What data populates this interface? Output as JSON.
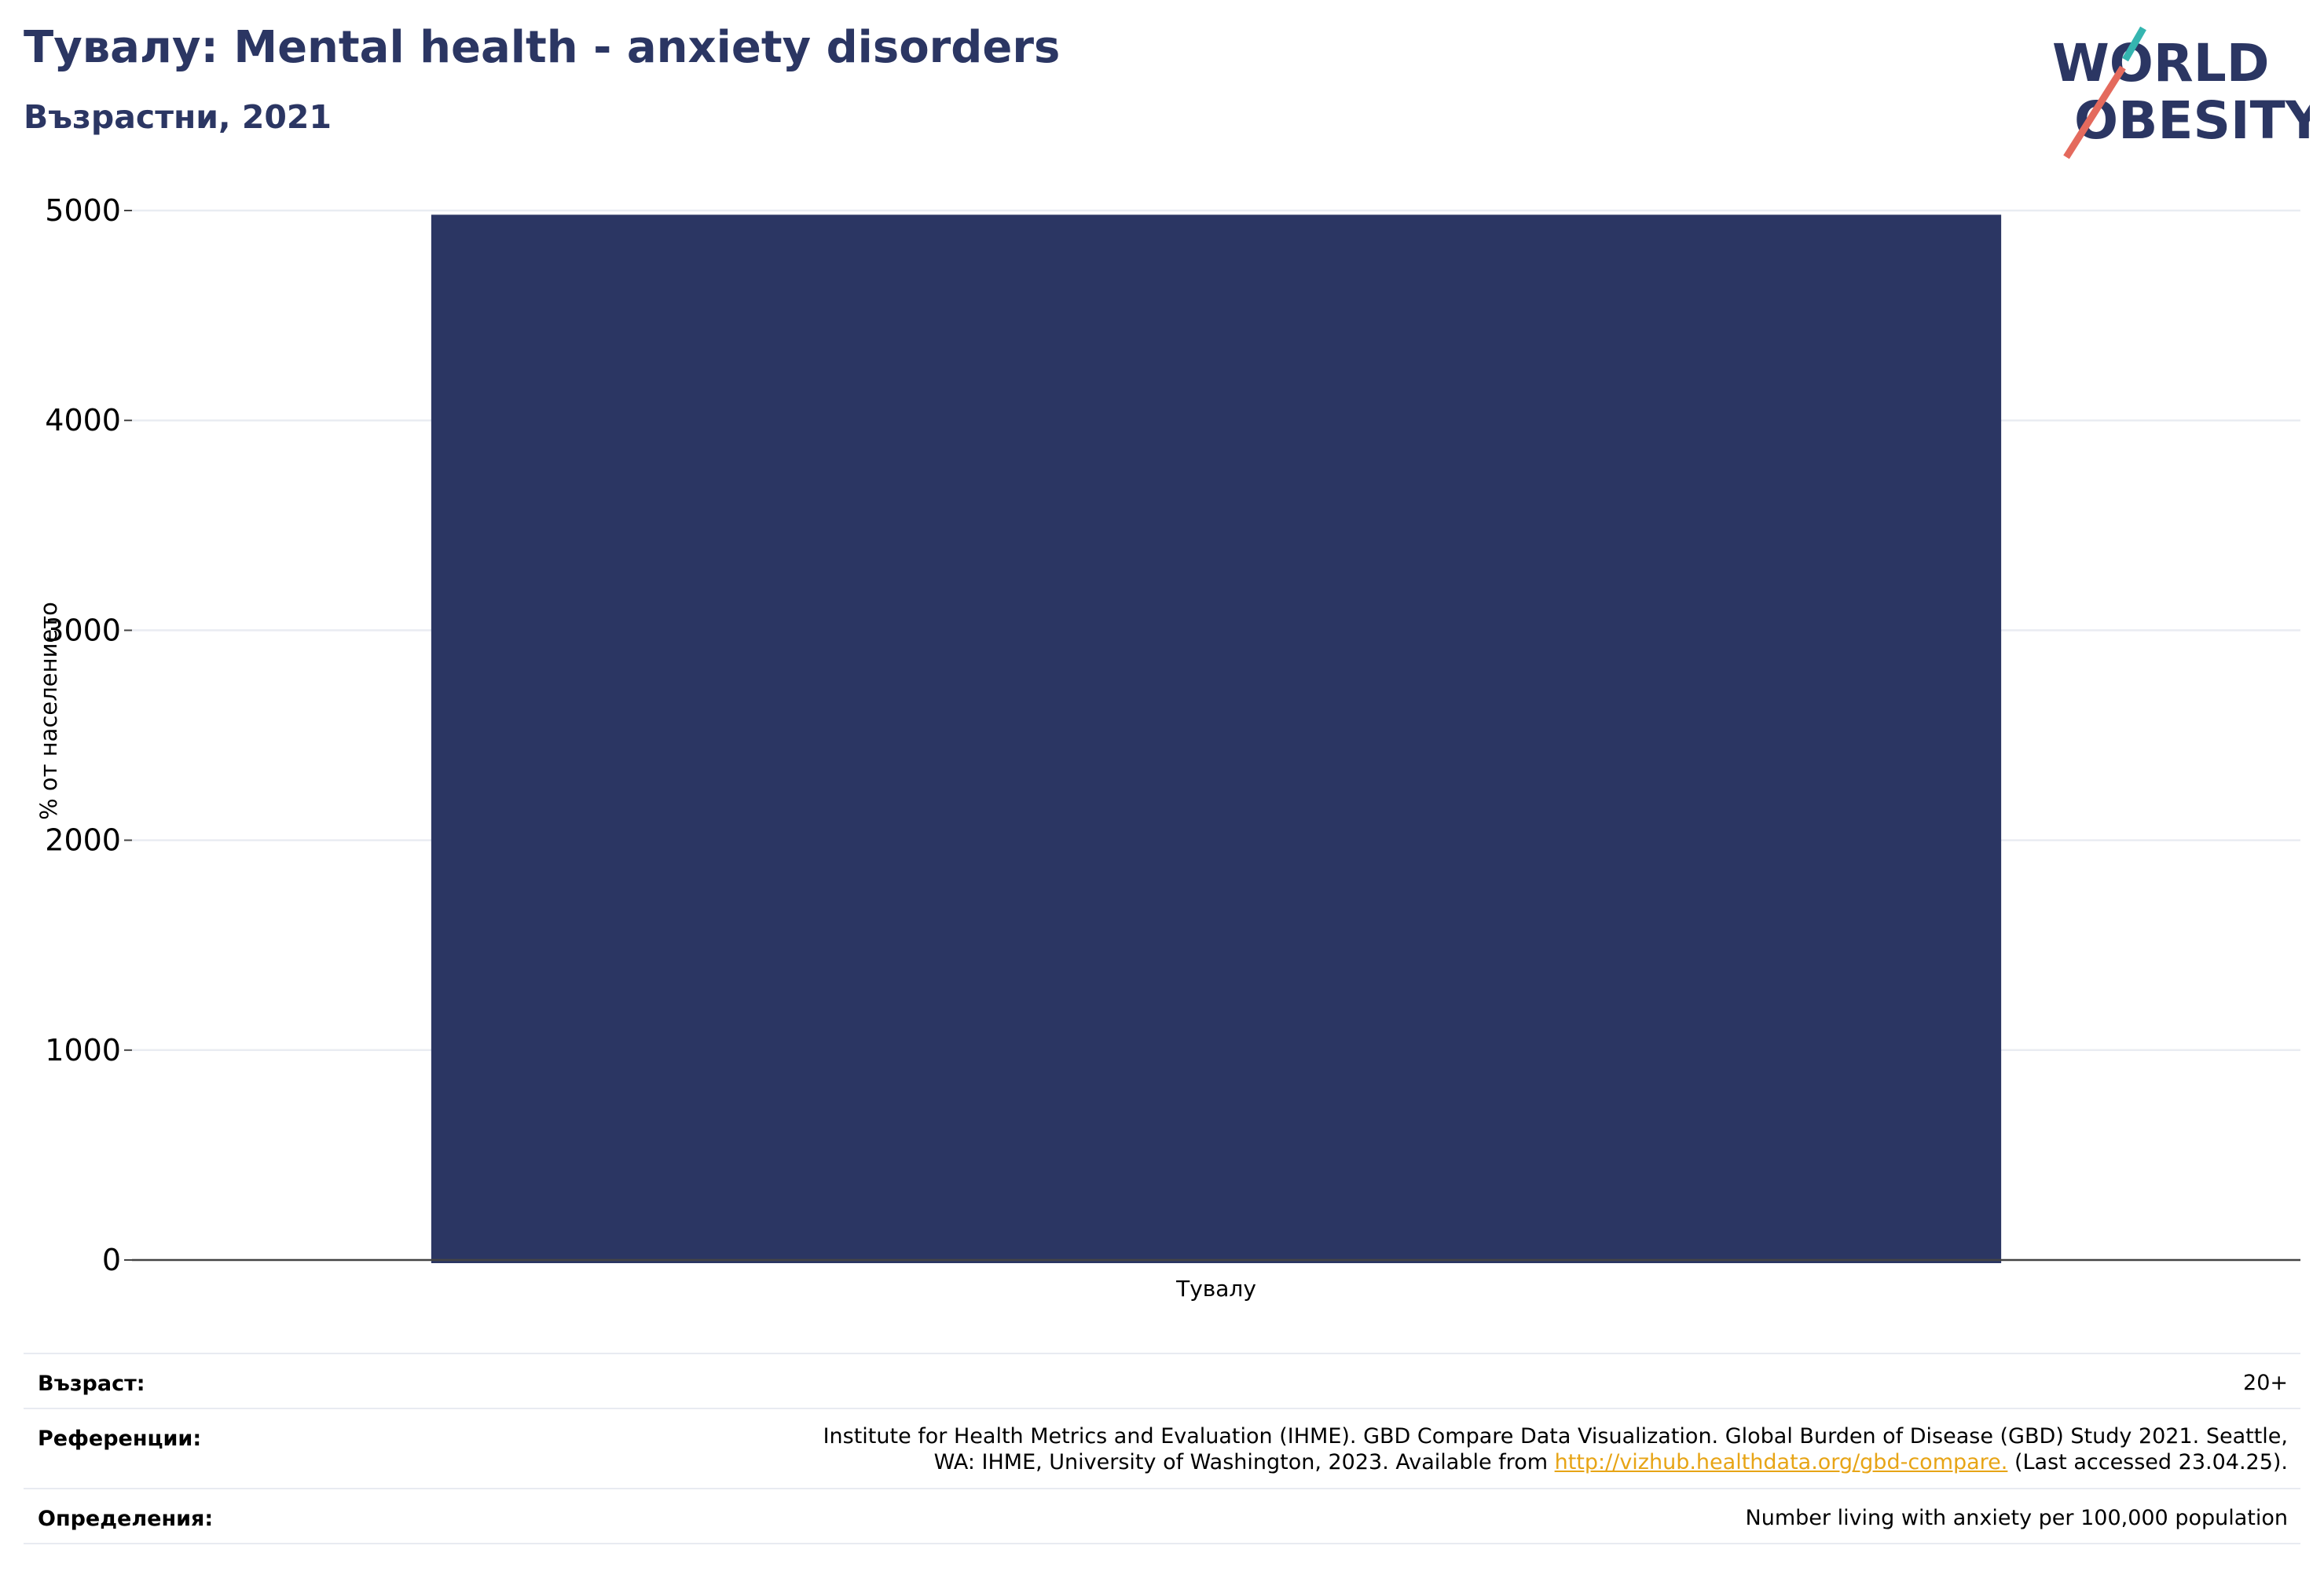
{
  "header": {
    "title": "Тувалу: Mental health - anxiety disorders",
    "subtitle": "Възрастни, 2021"
  },
  "logo": {
    "line1": "WORLD",
    "line2": "OBESITY",
    "colors": {
      "text": "#2b3663",
      "teal": "#35b5b0",
      "red": "#e46a5d"
    }
  },
  "chart_data": {
    "type": "bar",
    "categories": [
      "Тувалу"
    ],
    "values": [
      4980
    ],
    "ylabel": "% от населението",
    "xlabel": "",
    "ylim": [
      0,
      5000
    ],
    "yticks": [
      0,
      1000,
      2000,
      3000,
      4000,
      5000
    ],
    "grid": true,
    "bar_color": "#2b3663"
  },
  "footer": {
    "age_label": "Възраст:",
    "age_value": "20+",
    "references_label": "Референции:",
    "references_line1": "Institute for Health Metrics and Evaluation (IHME). GBD Compare Data Visualization. Global Burden of Disease (GBD) Study 2021. Seattle,",
    "references_line2_pre": "WA: IHME, University of Washington, 2023. Available from ",
    "references_link": "http://vizhub.healthdata.org/gbd-compare.",
    "references_line2_post": " (Last accessed 23.04.25).",
    "definitions_label": "Определения:",
    "definitions_value": "Number living with anxiety per 100,000 population"
  }
}
